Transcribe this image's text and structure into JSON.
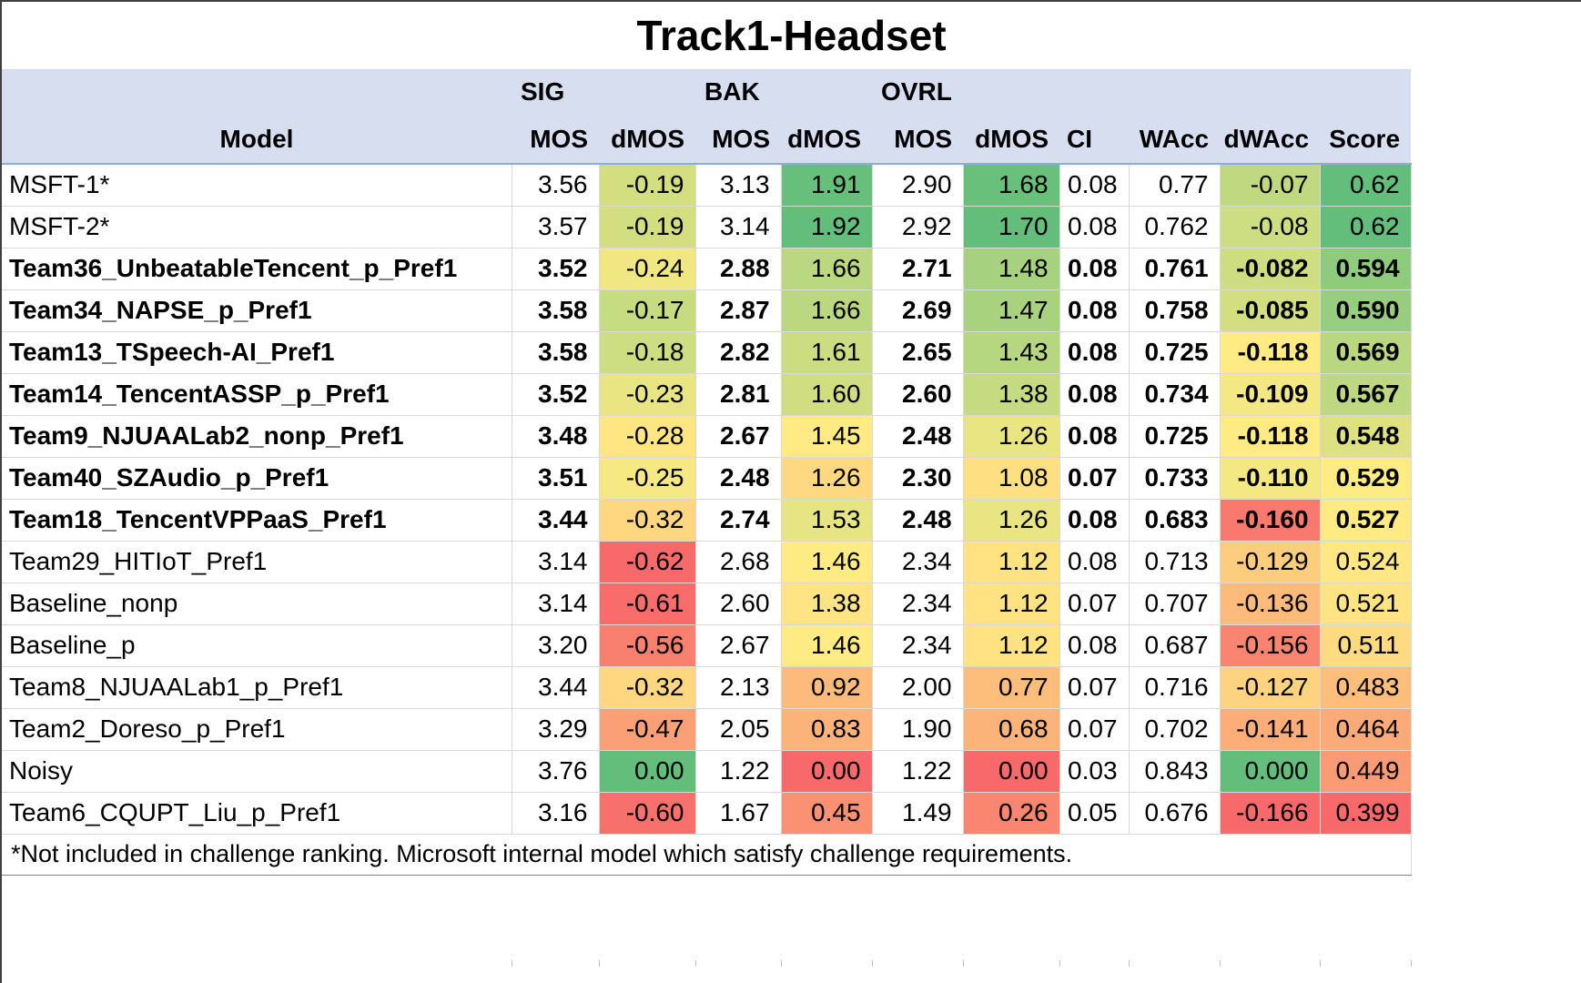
{
  "footnote": "*Not included in challenge ranking. Microsoft internal model which satisfy challenge requirements.",
  "colors": {
    "header_bg": "#D7DEEF",
    "header_underline": "#8FAADC",
    "gridline": "#D9D9D9",
    "scale_min": "#F8696B",
    "scale_mid": "#FFEB84",
    "scale_max": "#63BE7B"
  },
  "chart_data": {
    "type": "table",
    "title": "Track1-Headset",
    "header": {
      "model_label": "Model",
      "groups": [
        "SIG",
        "BAK",
        "OVRL"
      ],
      "sub_columns": [
        "MOS",
        "dMOS",
        "MOS",
        "dMOS",
        "MOS",
        "dMOS",
        "CI",
        "WAcc",
        "dWAcc",
        "Score"
      ]
    },
    "color_scaled_columns": [
      "dMOS",
      "dWAcc",
      "Score"
    ],
    "color_scale": {
      "low": "#F8696B",
      "mid": "#FFEB84",
      "high": "#63BE7B"
    },
    "rows": [
      {
        "model": "MSFT-1*",
        "bold": false,
        "values": [
          "3.56",
          "-0.19",
          "3.13",
          "1.91",
          "2.90",
          "1.68",
          "0.08",
          "0.77",
          "-0.07",
          "0.62"
        ]
      },
      {
        "model": "MSFT-2*",
        "bold": false,
        "values": [
          "3.57",
          "-0.19",
          "3.14",
          "1.92",
          "2.92",
          "1.70",
          "0.08",
          "0.762",
          "-0.08",
          "0.62"
        ]
      },
      {
        "model": "Team36_UnbeatableTencent_p_Pref1",
        "bold": true,
        "values": [
          "3.52",
          "-0.24",
          "2.88",
          "1.66",
          "2.71",
          "1.48",
          "0.08",
          "0.761",
          "-0.082",
          "0.594"
        ]
      },
      {
        "model": "Team34_NAPSE_p_Pref1",
        "bold": true,
        "values": [
          "3.58",
          "-0.17",
          "2.87",
          "1.66",
          "2.69",
          "1.47",
          "0.08",
          "0.758",
          "-0.085",
          "0.590"
        ]
      },
      {
        "model": "Team13_TSpeech-AI_Pref1",
        "bold": true,
        "values": [
          "3.58",
          "-0.18",
          "2.82",
          "1.61",
          "2.65",
          "1.43",
          "0.08",
          "0.725",
          "-0.118",
          "0.569"
        ]
      },
      {
        "model": "Team14_TencentASSP_p_Pref1",
        "bold": true,
        "values": [
          "3.52",
          "-0.23",
          "2.81",
          "1.60",
          "2.60",
          "1.38",
          "0.08",
          "0.734",
          "-0.109",
          "0.567"
        ]
      },
      {
        "model": "Team9_NJUAALab2_nonp_Pref1",
        "bold": true,
        "values": [
          "3.48",
          "-0.28",
          "2.67",
          "1.45",
          "2.48",
          "1.26",
          "0.08",
          "0.725",
          "-0.118",
          "0.548"
        ]
      },
      {
        "model": "Team40_SZAudio_p_Pref1",
        "bold": true,
        "values": [
          "3.51",
          "-0.25",
          "2.48",
          "1.26",
          "2.30",
          "1.08",
          "0.07",
          "0.733",
          "-0.110",
          "0.529"
        ]
      },
      {
        "model": "Team18_TencentVPPaaS_Pref1",
        "bold": true,
        "values": [
          "3.44",
          "-0.32",
          "2.74",
          "1.53",
          "2.48",
          "1.26",
          "0.08",
          "0.683",
          "-0.160",
          "0.527"
        ]
      },
      {
        "model": "Team29_HITIoT_Pref1",
        "bold": false,
        "values": [
          "3.14",
          "-0.62",
          "2.68",
          "1.46",
          "2.34",
          "1.12",
          "0.08",
          "0.713",
          "-0.129",
          "0.524"
        ]
      },
      {
        "model": "Baseline_nonp",
        "bold": false,
        "values": [
          "3.14",
          "-0.61",
          "2.60",
          "1.38",
          "2.34",
          "1.12",
          "0.07",
          "0.707",
          "-0.136",
          "0.521"
        ]
      },
      {
        "model": "Baseline_p",
        "bold": false,
        "values": [
          "3.20",
          "-0.56",
          "2.67",
          "1.46",
          "2.34",
          "1.12",
          "0.08",
          "0.687",
          "-0.156",
          "0.511"
        ]
      },
      {
        "model": "Team8_NJUAALab1_p_Pref1",
        "bold": false,
        "values": [
          "3.44",
          "-0.32",
          "2.13",
          "0.92",
          "2.00",
          "0.77",
          "0.07",
          "0.716",
          "-0.127",
          "0.483"
        ]
      },
      {
        "model": "Team2_Doreso_p_Pref1",
        "bold": false,
        "values": [
          "3.29",
          "-0.47",
          "2.05",
          "0.83",
          "1.90",
          "0.68",
          "0.07",
          "0.702",
          "-0.141",
          "0.464"
        ]
      },
      {
        "model": "Noisy",
        "bold": false,
        "values": [
          "3.76",
          "0.00",
          "1.22",
          "0.00",
          "1.22",
          "0.00",
          "0.03",
          "0.843",
          "0.000",
          "0.449"
        ]
      },
      {
        "model": "Team6_CQUPT_Liu_p_Pref1",
        "bold": false,
        "values": [
          "3.16",
          "-0.60",
          "1.67",
          "0.45",
          "1.49",
          "0.26",
          "0.05",
          "0.676",
          "-0.166",
          "0.399"
        ]
      }
    ]
  }
}
